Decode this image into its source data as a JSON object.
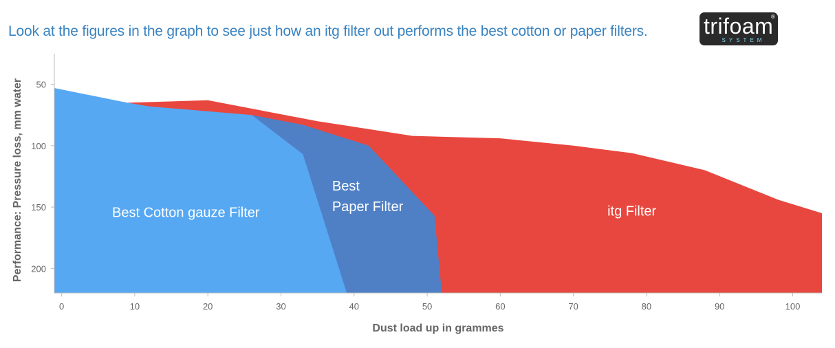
{
  "headline": "Look at the figures in the graph to see just how an itg filter out performs the best cotton or paper filters.",
  "logo": {
    "word": "trifoam",
    "reg": "®",
    "sub": "SYSTEM"
  },
  "colors": {
    "itg": "#e8473f",
    "paper": "#4f80c6",
    "cotton": "#56a8f3",
    "axis": "#bbbbbb",
    "text": "#666666",
    "headline": "#3a83c0"
  },
  "chart_data": {
    "type": "area",
    "xlabel": "Dust load up in grammes",
    "ylabel": "Performance: Pressure loss, mm water",
    "xlim": [
      -1,
      104
    ],
    "ylim": [
      25,
      220
    ],
    "y_inverted": true,
    "x_ticks": [
      0,
      10,
      20,
      30,
      40,
      50,
      60,
      70,
      80,
      90,
      100
    ],
    "y_ticks": [
      50,
      100,
      150,
      200
    ],
    "series": [
      {
        "name": "itg Filter",
        "color": "#e8473f",
        "points": [
          [
            9,
            65
          ],
          [
            20,
            63
          ],
          [
            35,
            80
          ],
          [
            48,
            92
          ],
          [
            60,
            94
          ],
          [
            70,
            100
          ],
          [
            78,
            106
          ],
          [
            88,
            120
          ],
          [
            98,
            144
          ],
          [
            104,
            155
          ],
          [
            104,
            220
          ],
          [
            9,
            220
          ]
        ],
        "label_lines": [
          "itg Filter"
        ],
        "label_at": [
          78,
          157
        ]
      },
      {
        "name": "Best Paper Filter",
        "color": "#4f80c6",
        "points": [
          [
            26,
            75
          ],
          [
            33,
            83
          ],
          [
            42,
            100
          ],
          [
            51,
            157
          ],
          [
            52,
            220
          ],
          [
            39,
            220
          ]
        ],
        "label_lines": [
          "Best",
          "Paper Filter"
        ],
        "label_at": [
          37,
          145
        ]
      },
      {
        "name": "Best Cotton gauze Filter",
        "color": "#56a8f3",
        "points": [
          [
            -1,
            53
          ],
          [
            9,
            65
          ],
          [
            12,
            68
          ],
          [
            26,
            75
          ],
          [
            33,
            107
          ],
          [
            39,
            220
          ],
          [
            -1,
            220
          ]
        ],
        "label_lines": [
          "Best Cotton gauze Filter"
        ],
        "label_at": [
          17,
          158
        ]
      }
    ]
  }
}
